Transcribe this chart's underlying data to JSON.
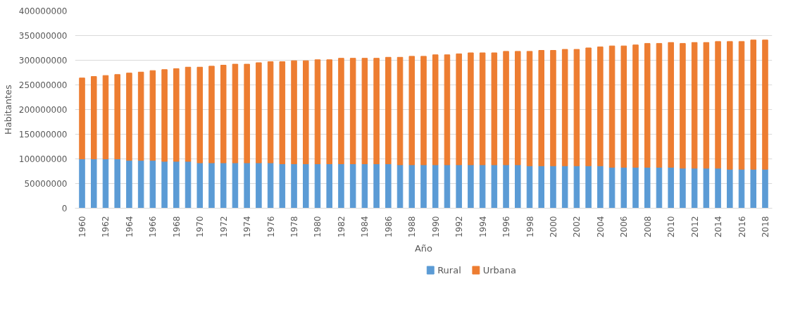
{
  "chart_data": {
    "type": "bar",
    "stacked": true,
    "xlabel": "Año",
    "ylabel": "Habitantes",
    "categories": [
      "1960",
      null,
      "1962",
      null,
      "1964",
      null,
      "1966",
      null,
      "1968",
      null,
      "1970",
      null,
      "1972",
      null,
      "1974",
      null,
      "1976",
      null,
      "1978",
      null,
      "1980",
      null,
      "1982",
      null,
      "1984",
      null,
      "1986",
      null,
      "1988",
      null,
      "1990",
      null,
      "1992",
      null,
      "1994",
      null,
      "1996",
      null,
      "1998",
      null,
      "2000",
      null,
      "2002",
      null,
      "2004",
      null,
      "2006",
      null,
      "2008",
      null,
      "2010",
      null,
      "2012",
      null,
      "2014",
      null,
      "2016",
      null,
      "2018"
    ],
    "series": [
      {
        "name": "Rural",
        "color": "#5b9bd5",
        "values": [
          100000000,
          100000000,
          100000000,
          100000000,
          97000000,
          97000000,
          97000000,
          95000000,
          95000000,
          95000000,
          92000000,
          92000000,
          92000000,
          92000000,
          92000000,
          92000000,
          92000000,
          90000000,
          90000000,
          90000000,
          90000000,
          90000000,
          90000000,
          90000000,
          90000000,
          90000000,
          90000000,
          88000000,
          88000000,
          88000000,
          88000000,
          88000000,
          88000000,
          88000000,
          88000000,
          88000000,
          88000000,
          88000000,
          86000000,
          86000000,
          86000000,
          86000000,
          86000000,
          86000000,
          86000000,
          83000000,
          83000000,
          83000000,
          83000000,
          83000000,
          83000000,
          81000000,
          81000000,
          81000000,
          81000000,
          79000000,
          79000000,
          79000000,
          79000000
        ]
      },
      {
        "name": "Urbana",
        "color": "#ed7d31",
        "values": [
          164000000,
          167000000,
          169000000,
          171000000,
          177000000,
          179000000,
          182000000,
          186000000,
          188000000,
          191000000,
          194000000,
          196000000,
          198000000,
          200000000,
          200000000,
          203000000,
          205000000,
          207000000,
          209000000,
          209000000,
          211000000,
          211000000,
          214000000,
          214000000,
          214000000,
          214000000,
          216000000,
          218000000,
          220000000,
          220000000,
          223000000,
          223000000,
          225000000,
          227000000,
          227000000,
          227000000,
          230000000,
          230000000,
          232000000,
          234000000,
          234000000,
          236000000,
          236000000,
          239000000,
          241000000,
          246000000,
          246000000,
          248000000,
          251000000,
          251000000,
          253000000,
          253000000,
          255000000,
          255000000,
          257000000,
          259000000,
          259000000,
          262000000,
          262000000
        ]
      }
    ],
    "ylim": [
      0,
      400000000
    ],
    "yticks": [
      0,
      50000000,
      100000000,
      150000000,
      200000000,
      250000000,
      300000000,
      350000000,
      400000000
    ],
    "grid": "y",
    "legend": "bottom"
  }
}
